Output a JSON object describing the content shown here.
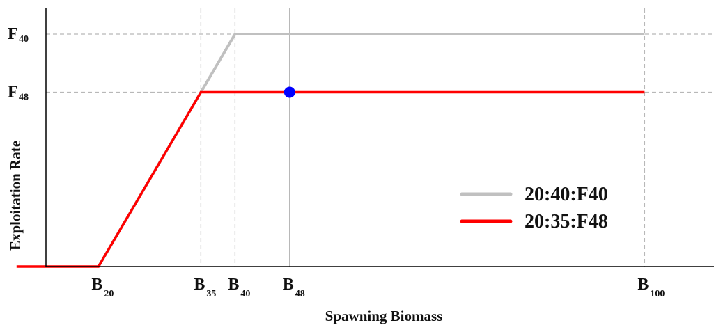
{
  "chart_data": {
    "type": "line",
    "xlabel": "Spawning Biomass",
    "ylabel": "Exploitation Rate",
    "xlim": [
      7,
      105
    ],
    "ylim": [
      0,
      0.52
    ],
    "grid": false,
    "legend_position": "bottom-right",
    "x_ticks": [
      {
        "value": 20,
        "base": "B",
        "sub": "20"
      },
      {
        "value": 35,
        "base": "B",
        "sub": "35"
      },
      {
        "value": 40,
        "base": "B",
        "sub": "40"
      },
      {
        "value": 48,
        "base": "B",
        "sub": "48"
      },
      {
        "value": 100,
        "base": "B",
        "sub": "100"
      }
    ],
    "y_ticks": [
      {
        "value": 0.48,
        "base": "F",
        "sub": "40"
      },
      {
        "value": 0.36,
        "base": "F",
        "sub": "48"
      }
    ],
    "reference_lines": {
      "vertical_dashed": [
        35,
        40,
        100
      ],
      "vertical_solid": [
        48
      ],
      "horizontal_dashed": [
        0.48,
        0.36
      ]
    },
    "series": [
      {
        "name": "20:40:F40",
        "color": "#c0c0c0",
        "x": [
          20,
          40,
          100
        ],
        "y": [
          0,
          0.48,
          0.48
        ]
      },
      {
        "name": "20:35:F48",
        "color": "#ff0000",
        "x": [
          8,
          20,
          35,
          100
        ],
        "y": [
          0,
          0,
          0.36,
          0.36
        ]
      }
    ],
    "points": [
      {
        "x": 48,
        "y": 0.36,
        "color": "#0000ff"
      }
    ]
  }
}
